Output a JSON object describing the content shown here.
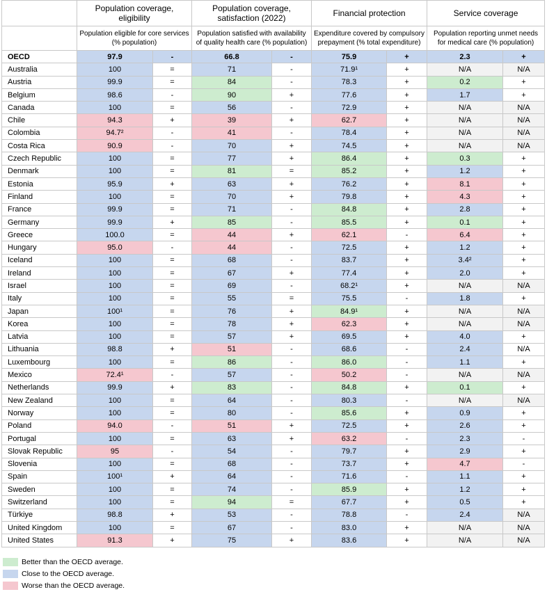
{
  "header": {
    "groups": [
      "Population coverage, eligibility",
      "Population coverage, satisfaction (2022)",
      "Financial protection",
      "Service coverage"
    ],
    "subheads": [
      "Population eligible for core services (% population)",
      "Population satisfied with availability of quality health care (% population)",
      "Expenditure covered by compulsory prepayment (% total expenditure)",
      "Population reporting unmet needs for medical care (% population)"
    ]
  },
  "colors": {
    "better": "#cdeccf",
    "close": "#c6d6ee",
    "worse": "#f5c7cf",
    "na": "#f2f2f2"
  },
  "rows": [
    {
      "country": "OECD",
      "c": [
        [
          "97.9",
          "b"
        ],
        [
          "-",
          "b"
        ],
        [
          "66.8",
          "b"
        ],
        [
          "-",
          "b"
        ],
        [
          "75.9",
          "b"
        ],
        [
          "+",
          "b"
        ],
        [
          "2.3",
          "b"
        ],
        [
          "+",
          "b"
        ]
      ]
    },
    {
      "country": "Australia",
      "c": [
        [
          "100",
          "b"
        ],
        [
          "=",
          ""
        ],
        [
          "71",
          "b"
        ],
        [
          "-",
          ""
        ],
        [
          "71.9¹",
          "b"
        ],
        [
          "+",
          ""
        ],
        [
          "N/A",
          "n"
        ],
        [
          "N/A",
          "n"
        ]
      ]
    },
    {
      "country": "Austria",
      "c": [
        [
          "99.9",
          "b"
        ],
        [
          "=",
          ""
        ],
        [
          "84",
          "g"
        ],
        [
          "-",
          ""
        ],
        [
          "78.3",
          "b"
        ],
        [
          "+",
          ""
        ],
        [
          "0.2",
          "g"
        ],
        [
          "+",
          ""
        ]
      ]
    },
    {
      "country": "Belgium",
      "c": [
        [
          "98.6",
          "b"
        ],
        [
          "-",
          ""
        ],
        [
          "90",
          "g"
        ],
        [
          "+",
          ""
        ],
        [
          "77.6",
          "b"
        ],
        [
          "+",
          ""
        ],
        [
          "1.7",
          "b"
        ],
        [
          "+",
          ""
        ]
      ]
    },
    {
      "country": "Canada",
      "c": [
        [
          "100",
          "b"
        ],
        [
          "=",
          ""
        ],
        [
          "56",
          "b"
        ],
        [
          "-",
          ""
        ],
        [
          "72.9",
          "b"
        ],
        [
          "+",
          ""
        ],
        [
          "N/A",
          "n"
        ],
        [
          "N/A",
          "n"
        ]
      ]
    },
    {
      "country": "Chile",
      "c": [
        [
          "94.3",
          "r"
        ],
        [
          "+",
          ""
        ],
        [
          "39",
          "r"
        ],
        [
          "+",
          ""
        ],
        [
          "62.7",
          "r"
        ],
        [
          "+",
          ""
        ],
        [
          "N/A",
          "n"
        ],
        [
          "N/A",
          "n"
        ]
      ]
    },
    {
      "country": "Colombia",
      "c": [
        [
          "94.7²",
          "r"
        ],
        [
          "-",
          ""
        ],
        [
          "41",
          "r"
        ],
        [
          "-",
          ""
        ],
        [
          "78.4",
          "b"
        ],
        [
          "+",
          ""
        ],
        [
          "N/A",
          "n"
        ],
        [
          "N/A",
          "n"
        ]
      ]
    },
    {
      "country": "Costa Rica",
      "c": [
        [
          "90.9",
          "r"
        ],
        [
          "-",
          ""
        ],
        [
          "70",
          "b"
        ],
        [
          "+",
          ""
        ],
        [
          "74.5",
          "b"
        ],
        [
          "+",
          ""
        ],
        [
          "N/A",
          "n"
        ],
        [
          "N/A",
          "n"
        ]
      ]
    },
    {
      "country": "Czech Republic",
      "c": [
        [
          "100",
          "b"
        ],
        [
          "=",
          ""
        ],
        [
          "77",
          "b"
        ],
        [
          "+",
          ""
        ],
        [
          "86.4",
          "g"
        ],
        [
          "+",
          ""
        ],
        [
          "0.3",
          "g"
        ],
        [
          "+",
          ""
        ]
      ]
    },
    {
      "country": "Denmark",
      "c": [
        [
          "100",
          "b"
        ],
        [
          "=",
          ""
        ],
        [
          "81",
          "g"
        ],
        [
          "=",
          ""
        ],
        [
          "85.2",
          "g"
        ],
        [
          "+",
          ""
        ],
        [
          "1.2",
          "b"
        ],
        [
          "+",
          ""
        ]
      ]
    },
    {
      "country": "Estonia",
      "c": [
        [
          "95.9",
          "b"
        ],
        [
          "+",
          ""
        ],
        [
          "63",
          "b"
        ],
        [
          "+",
          ""
        ],
        [
          "76.2",
          "b"
        ],
        [
          "+",
          ""
        ],
        [
          "8.1",
          "r"
        ],
        [
          "+",
          ""
        ]
      ]
    },
    {
      "country": "Finland",
      "c": [
        [
          "100",
          "b"
        ],
        [
          "=",
          ""
        ],
        [
          "70",
          "b"
        ],
        [
          "+",
          ""
        ],
        [
          "79.8",
          "b"
        ],
        [
          "+",
          ""
        ],
        [
          "4.3",
          "r"
        ],
        [
          "+",
          ""
        ]
      ]
    },
    {
      "country": "France",
      "c": [
        [
          "99.9",
          "b"
        ],
        [
          "=",
          ""
        ],
        [
          "71",
          "b"
        ],
        [
          "-",
          ""
        ],
        [
          "84.8",
          "g"
        ],
        [
          "+",
          ""
        ],
        [
          "2.8",
          "b"
        ],
        [
          "+",
          ""
        ]
      ]
    },
    {
      "country": "Germany",
      "c": [
        [
          "99.9",
          "b"
        ],
        [
          "+",
          ""
        ],
        [
          "85",
          "g"
        ],
        [
          "-",
          ""
        ],
        [
          "85.5",
          "g"
        ],
        [
          "+",
          ""
        ],
        [
          "0.1",
          "g"
        ],
        [
          "+",
          ""
        ]
      ]
    },
    {
      "country": "Greece",
      "c": [
        [
          "100.0",
          "b"
        ],
        [
          "=",
          ""
        ],
        [
          "44",
          "r"
        ],
        [
          "+",
          ""
        ],
        [
          "62.1",
          "r"
        ],
        [
          "-",
          ""
        ],
        [
          "6.4",
          "r"
        ],
        [
          "+",
          ""
        ]
      ]
    },
    {
      "country": "Hungary",
      "c": [
        [
          "95.0",
          "r"
        ],
        [
          "-",
          ""
        ],
        [
          "44",
          "r"
        ],
        [
          "-",
          ""
        ],
        [
          "72.5",
          "b"
        ],
        [
          "+",
          ""
        ],
        [
          "1.2",
          "b"
        ],
        [
          "+",
          ""
        ]
      ]
    },
    {
      "country": "Iceland",
      "c": [
        [
          "100",
          "b"
        ],
        [
          "=",
          ""
        ],
        [
          "68",
          "b"
        ],
        [
          "-",
          ""
        ],
        [
          "83.7",
          "b"
        ],
        [
          "+",
          ""
        ],
        [
          "3.4²",
          "b"
        ],
        [
          "+",
          ""
        ]
      ]
    },
    {
      "country": "Ireland",
      "c": [
        [
          "100",
          "b"
        ],
        [
          "=",
          ""
        ],
        [
          "67",
          "b"
        ],
        [
          "+",
          ""
        ],
        [
          "77.4",
          "b"
        ],
        [
          "+",
          ""
        ],
        [
          "2.0",
          "b"
        ],
        [
          "+",
          ""
        ]
      ]
    },
    {
      "country": "Israel",
      "c": [
        [
          "100",
          "b"
        ],
        [
          "=",
          ""
        ],
        [
          "69",
          "b"
        ],
        [
          "-",
          ""
        ],
        [
          "68.2¹",
          "b"
        ],
        [
          "+",
          ""
        ],
        [
          "N/A",
          "n"
        ],
        [
          "N/A",
          "n"
        ]
      ]
    },
    {
      "country": "Italy",
      "c": [
        [
          "100",
          "b"
        ],
        [
          "=",
          ""
        ],
        [
          "55",
          "b"
        ],
        [
          "=",
          ""
        ],
        [
          "75.5",
          "b"
        ],
        [
          "-",
          ""
        ],
        [
          "1.8",
          "b"
        ],
        [
          "+",
          ""
        ]
      ]
    },
    {
      "country": "Japan",
      "c": [
        [
          "100¹",
          "b"
        ],
        [
          "=",
          ""
        ],
        [
          "76",
          "b"
        ],
        [
          "+",
          ""
        ],
        [
          "84.9¹",
          "g"
        ],
        [
          "+",
          ""
        ],
        [
          "N/A",
          "n"
        ],
        [
          "N/A",
          "n"
        ]
      ]
    },
    {
      "country": "Korea",
      "c": [
        [
          "100",
          "b"
        ],
        [
          "=",
          ""
        ],
        [
          "78",
          "b"
        ],
        [
          "+",
          ""
        ],
        [
          "62.3",
          "r"
        ],
        [
          "+",
          ""
        ],
        [
          "N/A",
          "n"
        ],
        [
          "N/A",
          "n"
        ]
      ]
    },
    {
      "country": "Latvia",
      "c": [
        [
          "100",
          "b"
        ],
        [
          "=",
          ""
        ],
        [
          "57",
          "b"
        ],
        [
          "+",
          ""
        ],
        [
          "69.5",
          "b"
        ],
        [
          "+",
          ""
        ],
        [
          "4.0",
          "b"
        ],
        [
          "+",
          ""
        ]
      ]
    },
    {
      "country": "Lithuania",
      "c": [
        [
          "98.8",
          "b"
        ],
        [
          "+",
          ""
        ],
        [
          "51",
          "r"
        ],
        [
          "-",
          ""
        ],
        [
          "68.6",
          "b"
        ],
        [
          "-",
          ""
        ],
        [
          "2.4",
          "b"
        ],
        [
          "N/A",
          ""
        ]
      ]
    },
    {
      "country": "Luxembourg",
      "c": [
        [
          "100",
          "b"
        ],
        [
          "=",
          ""
        ],
        [
          "86",
          "g"
        ],
        [
          "-",
          ""
        ],
        [
          "86.0",
          "g"
        ],
        [
          "-",
          ""
        ],
        [
          "1.1",
          "b"
        ],
        [
          "+",
          ""
        ]
      ]
    },
    {
      "country": "Mexico",
      "c": [
        [
          "72.4¹",
          "r"
        ],
        [
          "-",
          ""
        ],
        [
          "57",
          "b"
        ],
        [
          "-",
          ""
        ],
        [
          "50.2",
          "r"
        ],
        [
          "-",
          ""
        ],
        [
          "N/A",
          "n"
        ],
        [
          "N/A",
          "n"
        ]
      ]
    },
    {
      "country": "Netherlands",
      "c": [
        [
          "99.9",
          "b"
        ],
        [
          "+",
          ""
        ],
        [
          "83",
          "g"
        ],
        [
          "-",
          ""
        ],
        [
          "84.8",
          "g"
        ],
        [
          "+",
          ""
        ],
        [
          "0.1",
          "g"
        ],
        [
          "+",
          ""
        ]
      ]
    },
    {
      "country": "New Zealand",
      "c": [
        [
          "100",
          "b"
        ],
        [
          "=",
          ""
        ],
        [
          "64",
          "b"
        ],
        [
          "-",
          ""
        ],
        [
          "80.3",
          "b"
        ],
        [
          "-",
          ""
        ],
        [
          "N/A",
          "n"
        ],
        [
          "N/A",
          "n"
        ]
      ]
    },
    {
      "country": "Norway",
      "c": [
        [
          "100",
          "b"
        ],
        [
          "=",
          ""
        ],
        [
          "80",
          "b"
        ],
        [
          "-",
          ""
        ],
        [
          "85.6",
          "g"
        ],
        [
          "+",
          ""
        ],
        [
          "0.9",
          "b"
        ],
        [
          "+",
          ""
        ]
      ]
    },
    {
      "country": "Poland",
      "c": [
        [
          "94.0",
          "r"
        ],
        [
          "-",
          ""
        ],
        [
          "51",
          "r"
        ],
        [
          "+",
          ""
        ],
        [
          "72.5",
          "b"
        ],
        [
          "+",
          ""
        ],
        [
          "2.6",
          "b"
        ],
        [
          "+",
          ""
        ]
      ]
    },
    {
      "country": "Portugal",
      "c": [
        [
          "100",
          "b"
        ],
        [
          "=",
          ""
        ],
        [
          "63",
          "b"
        ],
        [
          "+",
          ""
        ],
        [
          "63.2",
          "r"
        ],
        [
          "-",
          ""
        ],
        [
          "2.3",
          "b"
        ],
        [
          "-",
          ""
        ]
      ]
    },
    {
      "country": "Slovak Republic",
      "c": [
        [
          "95",
          "r"
        ],
        [
          "-",
          ""
        ],
        [
          "54",
          "b"
        ],
        [
          "-",
          ""
        ],
        [
          "79.7",
          "b"
        ],
        [
          "+",
          ""
        ],
        [
          "2.9",
          "b"
        ],
        [
          "+",
          ""
        ]
      ]
    },
    {
      "country": "Slovenia",
      "c": [
        [
          "100",
          "b"
        ],
        [
          "=",
          ""
        ],
        [
          "68",
          "b"
        ],
        [
          "-",
          ""
        ],
        [
          "73.7",
          "b"
        ],
        [
          "+",
          ""
        ],
        [
          "4.7",
          "r"
        ],
        [
          "-",
          ""
        ]
      ]
    },
    {
      "country": "Spain",
      "c": [
        [
          "100¹",
          "b"
        ],
        [
          "+",
          ""
        ],
        [
          "64",
          "b"
        ],
        [
          "-",
          ""
        ],
        [
          "71.6",
          "b"
        ],
        [
          "-",
          ""
        ],
        [
          "1.1",
          "b"
        ],
        [
          "+",
          ""
        ]
      ]
    },
    {
      "country": "Sweden",
      "c": [
        [
          "100",
          "b"
        ],
        [
          "=",
          ""
        ],
        [
          "74",
          "b"
        ],
        [
          "-",
          ""
        ],
        [
          "85.9",
          "g"
        ],
        [
          "+",
          ""
        ],
        [
          "1.2",
          "b"
        ],
        [
          "+",
          ""
        ]
      ]
    },
    {
      "country": "Switzerland",
      "c": [
        [
          "100",
          "b"
        ],
        [
          "=",
          ""
        ],
        [
          "94",
          "g"
        ],
        [
          "=",
          ""
        ],
        [
          "67.7",
          "b"
        ],
        [
          "+",
          ""
        ],
        [
          "0.5",
          "b"
        ],
        [
          "+",
          ""
        ]
      ]
    },
    {
      "country": "Türkiye",
      "c": [
        [
          "98.8",
          "b"
        ],
        [
          "+",
          ""
        ],
        [
          "53",
          "b"
        ],
        [
          "-",
          ""
        ],
        [
          "78.8",
          "b"
        ],
        [
          "-",
          ""
        ],
        [
          "2.4",
          "b"
        ],
        [
          "N/A",
          "n"
        ]
      ]
    },
    {
      "country": "United Kingdom",
      "c": [
        [
          "100",
          "b"
        ],
        [
          "=",
          ""
        ],
        [
          "67",
          "b"
        ],
        [
          "-",
          ""
        ],
        [
          "83.0",
          "b"
        ],
        [
          "+",
          ""
        ],
        [
          "N/A",
          "n"
        ],
        [
          "N/A",
          "n"
        ]
      ]
    },
    {
      "country": "United States",
      "c": [
        [
          "91.3",
          "r"
        ],
        [
          "+",
          ""
        ],
        [
          "75",
          "b"
        ],
        [
          "+",
          ""
        ],
        [
          "83.6",
          "b"
        ],
        [
          "+",
          ""
        ],
        [
          "N/A",
          "n"
        ],
        [
          "N/A",
          "n"
        ]
      ]
    }
  ],
  "legend": [
    {
      "label": "Better than the OECD average.",
      "color": "#cdeccf"
    },
    {
      "label": "Close to the OECD average.",
      "color": "#c6d6ee"
    },
    {
      "label": "Worse than the OECD average.",
      "color": "#f5c7cf"
    }
  ]
}
